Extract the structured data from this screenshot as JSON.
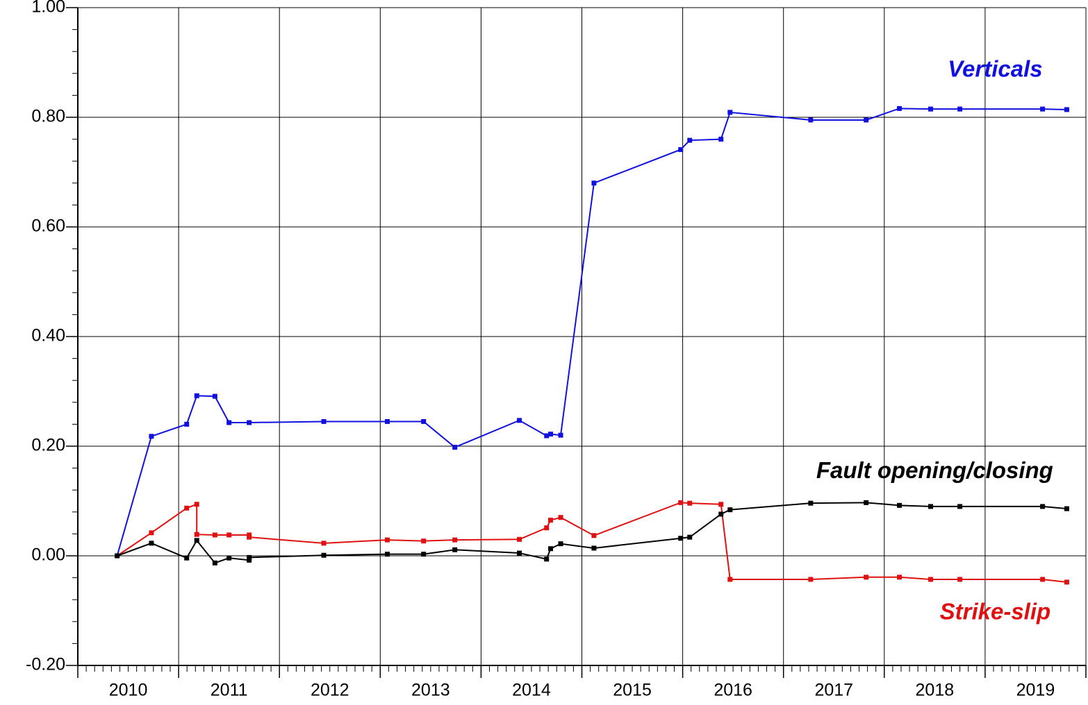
{
  "chart_data": {
    "type": "line",
    "annotations": [
      {
        "text": "Verticals",
        "color": "#1010e0",
        "x": 2019.1,
        "y": 0.885
      },
      {
        "text": "Fault opening/closing",
        "color": "#000000",
        "x": 2018.5,
        "y": 0.153
      },
      {
        "text": "Strike-slip",
        "color": "#e01010",
        "x": 2019.1,
        "y": -0.105
      }
    ],
    "series": [
      {
        "name": "Verticals",
        "color": "#1010e0",
        "x": [
          2010.39,
          2010.73,
          2011.08,
          2011.18,
          2011.36,
          2011.5,
          2011.7,
          2012.44,
          2013.07,
          2013.43,
          2013.74,
          2014.38,
          2014.65,
          2014.69,
          2014.79,
          2015.12,
          2015.98,
          2016.07,
          2016.38,
          2016.47,
          2017.27,
          2017.82,
          2018.15,
          2018.46,
          2018.75,
          2019.57,
          2019.81
        ],
        "values": [
          0,
          0.218,
          0.24,
          0.292,
          0.291,
          0.243,
          0.243,
          0.245,
          0.245,
          0.245,
          0.198,
          0.247,
          0.219,
          0.222,
          0.22,
          0.68,
          0.741,
          0.758,
          0.76,
          0.809,
          0.795,
          0.795,
          0.816,
          0.815,
          0.815,
          0.815,
          0.814
        ]
      },
      {
        "name": "Strike-slip",
        "color": "#e01010",
        "x": [
          2010.39,
          2010.73,
          2011.08,
          2011.18,
          2011.18,
          2011.36,
          2011.5,
          2011.7,
          2011.7,
          2012.44,
          2013.07,
          2013.43,
          2013.74,
          2014.38,
          2014.65,
          2014.69,
          2014.79,
          2015.12,
          2015.98,
          2016.07,
          2016.38,
          2016.47,
          2017.27,
          2017.82,
          2018.15,
          2018.46,
          2018.75,
          2019.57,
          2019.81
        ],
        "values": [
          0,
          0.042,
          0.087,
          0.094,
          0.039,
          0.038,
          0.038,
          0.038,
          0.034,
          0.023,
          0.029,
          0.027,
          0.029,
          0.03,
          0.051,
          0.065,
          0.07,
          0.037,
          0.097,
          0.096,
          0.094,
          -0.043,
          -0.043,
          -0.039,
          -0.039,
          -0.043,
          -0.043,
          -0.043,
          -0.048
        ]
      },
      {
        "name": "Fault opening/closing",
        "color": "#000000",
        "x": [
          2010.39,
          2010.73,
          2011.08,
          2011.18,
          2011.36,
          2011.5,
          2011.7,
          2011.7,
          2012.44,
          2013.07,
          2013.43,
          2013.74,
          2014.38,
          2014.65,
          2014.69,
          2014.79,
          2015.12,
          2015.98,
          2016.07,
          2016.38,
          2016.47,
          2017.27,
          2017.82,
          2018.15,
          2018.46,
          2018.75,
          2019.57,
          2019.81
        ],
        "values": [
          0,
          0.023,
          -0.004,
          0.028,
          -0.013,
          -0.004,
          -0.008,
          -0.003,
          0.001,
          0.003,
          0.003,
          0.011,
          0.005,
          -0.006,
          0.013,
          0.022,
          0.014,
          0.032,
          0.034,
          0.076,
          0.084,
          0.096,
          0.097,
          0.092,
          0.09,
          0.09,
          0.09,
          0.086
        ]
      }
    ],
    "xlim": [
      2010,
      2020
    ],
    "xgrid": [
      2010,
      2011,
      2012,
      2013,
      2014,
      2015,
      2016,
      2017,
      2018,
      2019,
      2020
    ],
    "xticks": [
      {
        "value": 2010.5,
        "label": "2010"
      },
      {
        "value": 2011.5,
        "label": "2011"
      },
      {
        "value": 2012.5,
        "label": "2012"
      },
      {
        "value": 2013.5,
        "label": "2013"
      },
      {
        "value": 2014.5,
        "label": "2014"
      },
      {
        "value": 2015.5,
        "label": "2015"
      },
      {
        "value": 2016.5,
        "label": "2016"
      },
      {
        "value": 2017.5,
        "label": "2017"
      },
      {
        "value": 2018.5,
        "label": "2018"
      },
      {
        "value": 2019.5,
        "label": "2019"
      }
    ],
    "ylim": [
      -0.2,
      1.0
    ],
    "yticks": [
      {
        "value": -0.2,
        "label": "-0.20"
      },
      {
        "value": 0,
        "label": "0.00"
      },
      {
        "value": 0.2,
        "label": "0.20"
      },
      {
        "value": 0.4,
        "label": "0.40"
      },
      {
        "value": 0.6,
        "label": "0.60"
      },
      {
        "value": 0.8,
        "label": "0.80"
      },
      {
        "value": 1.0,
        "label": "1.00"
      }
    ],
    "grid": true
  }
}
